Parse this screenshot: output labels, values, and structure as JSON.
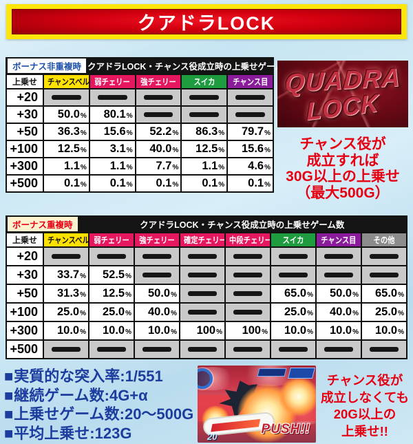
{
  "header": {
    "title": "クアドラLOCK"
  },
  "table1": {
    "tag": "ボーナス非重複時",
    "title": "クアドラLOCK・チャンス役成立時の上乗せゲーム数",
    "corner_label": "上乗せ",
    "unit": "%",
    "columns": [
      {
        "label": "チャンスベル",
        "bg": "#ffe100",
        "fg": "#111111"
      },
      {
        "label": "弱チェリー",
        "bg": "#e5175f",
        "fg": "#ffffff"
      },
      {
        "label": "強チェリー",
        "bg": "#e5175f",
        "fg": "#ffffff"
      },
      {
        "label": "スイカ",
        "bg": "#1f9b40",
        "fg": "#ffffff"
      },
      {
        "label": "チャンス目",
        "bg": "#8a1b9b",
        "fg": "#ffffff"
      }
    ],
    "rows": [
      {
        "label": "+20",
        "values": [
          null,
          null,
          null,
          null,
          null
        ]
      },
      {
        "label": "+30",
        "values": [
          "50.0",
          "80.1",
          null,
          null,
          null
        ]
      },
      {
        "label": "+50",
        "values": [
          "36.3",
          "15.6",
          "52.2",
          "86.3",
          "79.7"
        ]
      },
      {
        "label": "+100",
        "values": [
          "12.5",
          "3.1",
          "40.0",
          "12.5",
          "15.6"
        ]
      },
      {
        "label": "+300",
        "values": [
          "1.1",
          "1.1",
          "7.7",
          "1.1",
          "4.6"
        ]
      },
      {
        "label": "+500",
        "values": [
          "0.1",
          "0.1",
          "0.1",
          "0.1",
          "0.1"
        ]
      }
    ]
  },
  "table2": {
    "tag": "ボーナス重複時",
    "title": "クアドラLOCK・チャンス役成立時の上乗せゲーム数",
    "corner_label": "上乗せ",
    "unit": "%",
    "columns": [
      {
        "label": "チャンスベル",
        "bg": "#ffe100",
        "fg": "#111111"
      },
      {
        "label": "弱チェリー",
        "bg": "#e5175f",
        "fg": "#ffffff"
      },
      {
        "label": "強チェリー",
        "bg": "#e5175f",
        "fg": "#ffffff"
      },
      {
        "label": "確定チェリー",
        "bg": "#e5175f",
        "fg": "#ffffff"
      },
      {
        "label": "中段チェリー",
        "bg": "#e5175f",
        "fg": "#ffffff"
      },
      {
        "label": "スイカ",
        "bg": "#1f9b40",
        "fg": "#ffffff"
      },
      {
        "label": "チャンス目",
        "bg": "#8a1b9b",
        "fg": "#ffffff"
      },
      {
        "label": "その他",
        "bg": "#8c8c8c",
        "fg": "#ffffff"
      }
    ],
    "rows": [
      {
        "label": "+20",
        "values": [
          null,
          null,
          null,
          null,
          null,
          null,
          null,
          null
        ]
      },
      {
        "label": "+30",
        "values": [
          "33.7",
          "52.5",
          null,
          null,
          null,
          null,
          null,
          null
        ]
      },
      {
        "label": "+50",
        "values": [
          "31.3",
          "12.5",
          "50.0",
          null,
          null,
          "65.0",
          "50.0",
          "65.0"
        ]
      },
      {
        "label": "+100",
        "values": [
          "25.0",
          "25.0",
          "40.0",
          null,
          null,
          "25.0",
          "40.0",
          "25.0"
        ]
      },
      {
        "label": "+300",
        "values": [
          "10.0",
          "10.0",
          "10.0",
          "100",
          "100",
          "10.0",
          "10.0",
          "10.0"
        ]
      },
      {
        "label": "+500",
        "values": [
          null,
          null,
          null,
          null,
          null,
          null,
          null,
          null
        ]
      }
    ]
  },
  "logo": {
    "line1": "QUADRA",
    "line2": "LOCK"
  },
  "note_top": {
    "color": "#e60012",
    "lines": [
      "チャンス役が",
      "成立すれば",
      "30G以上の上乗せ",
      "（最大500G）"
    ]
  },
  "note_bottom": {
    "color": "#e60012",
    "lines": [
      "チャンス役が",
      "成立しなくても",
      "20G以上の",
      "上乗せ!!"
    ]
  },
  "stats": {
    "bullet": "■",
    "color": "#1c3c9e",
    "items": [
      "実質的な突入率:1/551",
      "継続ゲーム数:4G+α",
      "上乗せゲーム数:20～500G",
      "平均上乗せ:123G"
    ]
  },
  "screenshot": {
    "push_label": "PUSH!!",
    "counter": "20"
  }
}
